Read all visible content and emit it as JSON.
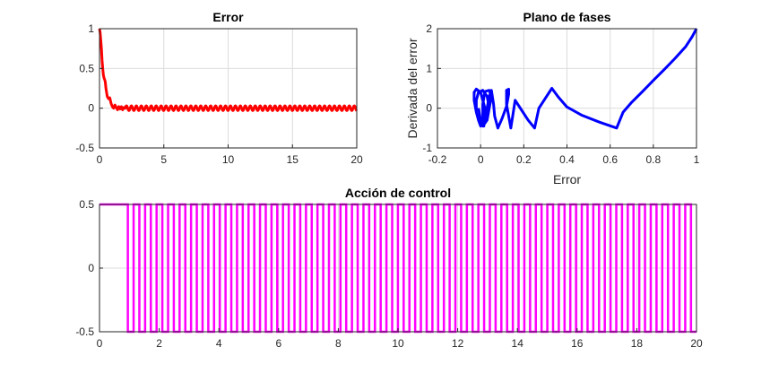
{
  "chart_data": [
    {
      "type": "line",
      "title": "Error",
      "xlabel": "",
      "ylabel": "",
      "xlim": [
        0,
        20
      ],
      "ylim": [
        -0.5,
        1
      ],
      "xticks": [
        "0",
        "5",
        "10",
        "15",
        "20"
      ],
      "yticks": [
        "1",
        "0.5",
        "0",
        "-0.5"
      ],
      "grid": true,
      "series": [
        {
          "color": "#ff0000",
          "x": [
            0,
            0.05,
            0.1,
            0.15,
            0.2,
            0.25,
            0.3,
            0.35,
            0.4,
            0.45,
            0.5,
            0.55,
            0.6,
            0.7,
            0.8,
            0.9,
            1.0,
            1.1,
            1.2,
            1.3,
            1.4,
            1.5,
            1.6,
            1.7,
            1.8,
            1.9,
            2.0
          ],
          "y": [
            1.0,
            0.95,
            0.85,
            0.75,
            0.6,
            0.5,
            0.42,
            0.38,
            0.36,
            0.33,
            0.25,
            0.2,
            0.15,
            0.12,
            0.13,
            0.06,
            0.02,
            0.0,
            0.04,
            0.01,
            -0.02,
            0.02,
            -0.01,
            0.02,
            -0.02,
            0.01,
            0.0
          ],
          "oscillation": {
            "start": 2.0,
            "end": 20,
            "amplitude": 0.03,
            "period": 0.385
          }
        }
      ]
    },
    {
      "type": "line",
      "title": "Plano de fases",
      "xlabel": "Error",
      "ylabel": "Derivada del error",
      "xlim": [
        -0.2,
        1
      ],
      "ylim": [
        -1,
        2
      ],
      "xticks": [
        "-0.2",
        "0",
        "0.2",
        "0.4",
        "0.6",
        "0.8",
        "1"
      ],
      "yticks": [
        "2",
        "1",
        "0",
        "-1"
      ],
      "grid": true,
      "series": [
        {
          "color": "#0000ff",
          "x": [
            1.0,
            0.98,
            0.95,
            0.9,
            0.85,
            0.8,
            0.75,
            0.7,
            0.66,
            0.63,
            0.55,
            0.47,
            0.4,
            0.36,
            0.33,
            0.3,
            0.27,
            0.25,
            0.22,
            0.19,
            0.16,
            0.14,
            0.13,
            0.12,
            0.12,
            0.13,
            0.13,
            0.12,
            0.11,
            0.1,
            0.08,
            0.065,
            0.06,
            0.05,
            0.04,
            0.03,
            0.015,
            0.01,
            0.01,
            0.02,
            0.04,
            0.05,
            0.04,
            0.02,
            0.0,
            -0.01,
            -0.02,
            -0.03,
            -0.03,
            -0.02,
            0.0,
            0.01,
            0.02,
            0.02,
            0.01,
            0.0,
            -0.01,
            -0.02,
            -0.02,
            -0.01,
            0.01,
            0.03,
            0.04,
            0.03,
            0.01,
            0.0,
            -0.01
          ],
          "y": [
            2.0,
            1.8,
            1.55,
            1.25,
            0.97,
            0.7,
            0.42,
            0.15,
            -0.1,
            -0.5,
            -0.35,
            -0.18,
            0.03,
            0.28,
            0.5,
            0.25,
            0.0,
            -0.5,
            -0.3,
            -0.05,
            0.2,
            -0.5,
            -0.2,
            0.1,
            0.45,
            0.48,
            0.35,
            0.05,
            -0.1,
            -0.25,
            -0.5,
            -0.2,
            0.1,
            0.45,
            0.3,
            0.0,
            -0.45,
            -0.25,
            0.1,
            0.42,
            0.45,
            0.3,
            0.0,
            -0.3,
            -0.45,
            -0.3,
            -0.1,
            0.2,
            0.4,
            0.48,
            0.4,
            0.2,
            0.0,
            -0.2,
            -0.35,
            -0.45,
            -0.3,
            -0.1,
            0.2,
            0.4,
            0.45,
            0.3,
            0.0,
            -0.3,
            -0.45,
            -0.3,
            0.0
          ]
        }
      ]
    },
    {
      "type": "line",
      "title": "Acción de control",
      "xlabel": "",
      "ylabel": "",
      "xlim": [
        0,
        20
      ],
      "ylim": [
        -0.5,
        0.5
      ],
      "xticks": [
        "0",
        "2",
        "4",
        "6",
        "8",
        "10",
        "12",
        "14",
        "16",
        "18",
        "20"
      ],
      "yticks": [
        "0.5",
        "0",
        "-0.5"
      ],
      "grid": true,
      "series": [
        {
          "color": "#ff00ff",
          "x": [
            0,
            0.95
          ],
          "y": [
            0.5,
            0.5
          ],
          "square_wave": {
            "high": 0.5,
            "low": -0.5,
            "first_drop": 0.95,
            "period": 0.385,
            "end": 20
          }
        }
      ]
    }
  ]
}
